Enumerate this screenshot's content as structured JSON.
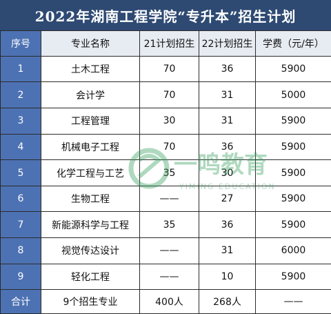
{
  "title": "2022年湖南工程学院“专升本”招生计划",
  "headers": [
    "序号",
    "专业名称",
    "21计划招生",
    "22计划招生",
    "学费（元/年）"
  ],
  "rows": [
    {
      "no": "1",
      "major": "土木工程",
      "plan21": "70",
      "plan22": "36",
      "fee": "5900"
    },
    {
      "no": "2",
      "major": "会计学",
      "plan21": "70",
      "plan22": "31",
      "fee": "5000"
    },
    {
      "no": "3",
      "major": "工程管理",
      "plan21": "30",
      "plan22": "31",
      "fee": "5900"
    },
    {
      "no": "4",
      "major": "机械电子工程",
      "plan21": "70",
      "plan22": "36",
      "fee": "5900"
    },
    {
      "no": "5",
      "major": "化学工程与工艺",
      "plan21": "35",
      "plan22": "30",
      "fee": "5900"
    },
    {
      "no": "6",
      "major": "生物工程",
      "plan21": "——",
      "plan22": "27",
      "fee": "5900"
    },
    {
      "no": "7",
      "major": "新能源科学与工程",
      "plan21": "35",
      "plan22": "36",
      "fee": "5900"
    },
    {
      "no": "8",
      "major": "视觉传达设计",
      "plan21": "——",
      "plan22": "31",
      "fee": "6000"
    },
    {
      "no": "9",
      "major": "轻化工程",
      "plan21": "——",
      "plan22": "10",
      "fee": "5900"
    }
  ],
  "total": {
    "label": "合计",
    "major": "9个招生专业",
    "plan21": "400人",
    "plan22": "268人",
    "fee": "——"
  },
  "watermark": {
    "text": "一鸣教育",
    "subtext": "YIMING EDUCATION",
    "icon": "yiming-logo-icon"
  },
  "colors": {
    "title_bg": "#2e4a73",
    "index_bg": "#4d72b3",
    "header_bg": "#e7ebf2",
    "watermark": "#2f9d5a"
  }
}
